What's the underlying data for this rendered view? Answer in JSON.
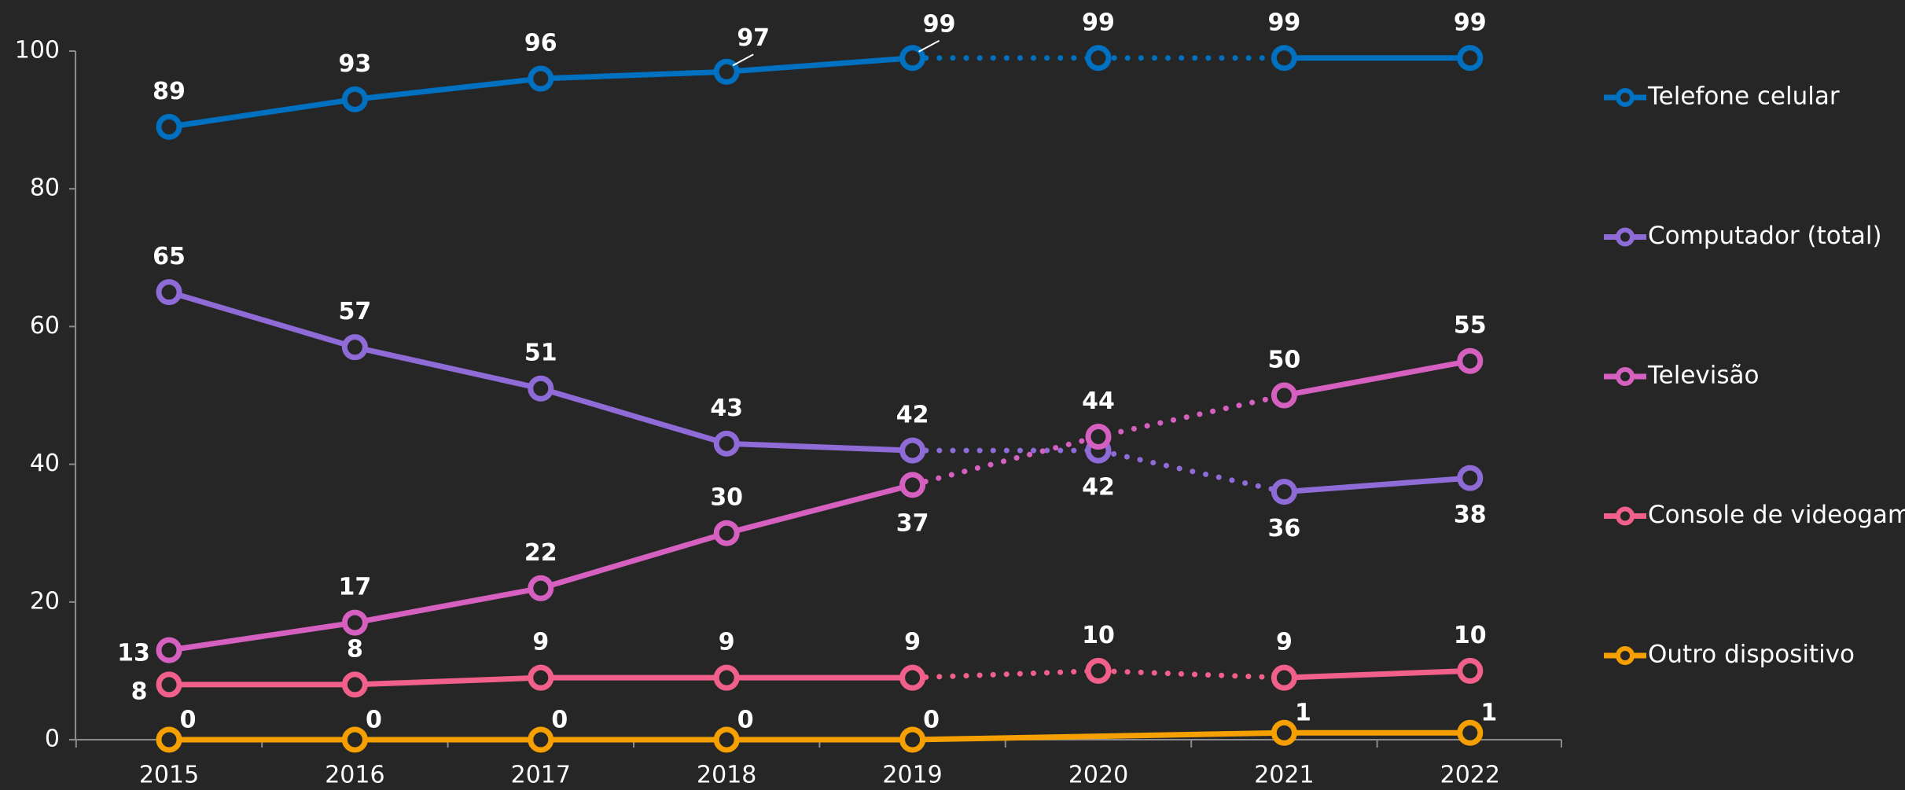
{
  "chart_data": {
    "type": "line",
    "categories": [
      "2015",
      "2016",
      "2017",
      "2018",
      "2019",
      "2020",
      "2021",
      "2022"
    ],
    "series": [
      {
        "name": "Telefone celular",
        "color": "#0070c0",
        "values": [
          89,
          93,
          96,
          97,
          99,
          99,
          99,
          99
        ],
        "dotted_segment": [
          "2019",
          "2021"
        ]
      },
      {
        "name": "Computador (total)",
        "color": "#8e6bd6",
        "values": [
          65,
          57,
          51,
          43,
          42,
          42,
          36,
          38
        ],
        "dotted_segment": [
          "2019",
          "2021"
        ]
      },
      {
        "name": "Televisão",
        "color": "#d660c0",
        "values": [
          13,
          17,
          22,
          30,
          37,
          44,
          50,
          55
        ],
        "dotted_segment": [
          "2019",
          "2021"
        ]
      },
      {
        "name": "Console de videogame",
        "color": "#f0608a",
        "values": [
          8,
          8,
          9,
          9,
          9,
          10,
          9,
          10
        ],
        "dotted_segment": [
          "2019",
          "2021"
        ]
      },
      {
        "name": "Outro dispositivo",
        "color": "#f5a000",
        "values": [
          0,
          0,
          0,
          0,
          0,
          0.5,
          1,
          1
        ]
      }
    ],
    "ylim": [
      0,
      100
    ],
    "yticks": [
      0,
      20,
      40,
      60,
      80,
      100
    ],
    "legend": "right"
  }
}
